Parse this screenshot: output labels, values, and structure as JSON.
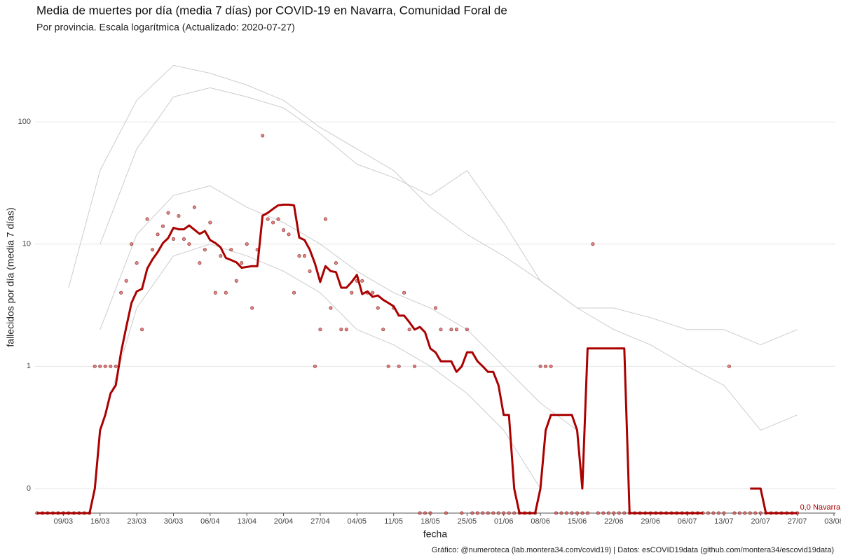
{
  "chart_data": {
    "type": "line",
    "title": "Media de muertes por día (media 7 días) por COVID-19 en Navarra, Comunidad Foral de",
    "subtitle": "Por provincia. Escala logarítmica  (Actualizado: 2020-07-27)",
    "x_label": "fecha",
    "y_label": "fallecidos por día (media 7 días)",
    "caption": "Gráfico: @numeroteca (lab.montera34.com/covid19) | Datos: esCOVID19data (github.com/montera34/escovid19data)",
    "log_scale": true,
    "grid": true,
    "xlim": [
      "04/03",
      "03/08"
    ],
    "xticks": [
      "09/03",
      "16/03",
      "23/03",
      "30/03",
      "06/04",
      "13/04",
      "20/04",
      "27/04",
      "04/05",
      "11/05",
      "18/05",
      "25/05",
      "01/06",
      "08/06",
      "15/06",
      "22/06",
      "29/06",
      "06/07",
      "13/07",
      "20/07",
      "27/07",
      "03/08"
    ],
    "ylim": [
      0.063,
      450
    ],
    "yticks": [
      {
        "value": 0.1,
        "label": "0"
      },
      1,
      10,
      100
    ],
    "x": [
      "04/03",
      "05/03",
      "06/03",
      "07/03",
      "08/03",
      "09/03",
      "10/03",
      "11/03",
      "12/03",
      "13/03",
      "14/03",
      "15/03",
      "16/03",
      "17/03",
      "18/03",
      "19/03",
      "20/03",
      "21/03",
      "22/03",
      "23/03",
      "24/03",
      "25/03",
      "26/03",
      "27/03",
      "28/03",
      "29/03",
      "30/03",
      "31/03",
      "01/04",
      "02/04",
      "03/04",
      "04/04",
      "05/04",
      "06/04",
      "07/04",
      "08/04",
      "09/04",
      "10/04",
      "11/04",
      "12/04",
      "13/04",
      "14/04",
      "15/04",
      "16/04",
      "17/04",
      "18/04",
      "19/04",
      "20/04",
      "21/04",
      "22/04",
      "23/04",
      "24/04",
      "25/04",
      "26/04",
      "27/04",
      "28/04",
      "29/04",
      "30/04",
      "01/05",
      "02/05",
      "03/05",
      "04/05",
      "05/05",
      "06/05",
      "07/05",
      "08/05",
      "09/05",
      "10/05",
      "11/05",
      "12/05",
      "13/05",
      "14/05",
      "15/05",
      "16/05",
      "17/05",
      "18/05",
      "19/05",
      "20/05",
      "21/05",
      "22/05",
      "23/05",
      "24/05",
      "25/05",
      "26/05",
      "27/05",
      "28/05",
      "29/05",
      "30/05",
      "31/05",
      "01/06",
      "02/06",
      "03/06",
      "04/06",
      "05/06",
      "06/06",
      "07/06",
      "08/06",
      "09/06",
      "10/06",
      "11/06",
      "12/06",
      "13/06",
      "14/06",
      "15/06",
      "16/06",
      "17/06",
      "18/06",
      "19/06",
      "20/06",
      "21/06",
      "22/06",
      "23/06",
      "24/06",
      "25/06",
      "26/06",
      "27/06",
      "28/06",
      "29/06",
      "30/06",
      "01/07",
      "02/07",
      "03/07",
      "04/07",
      "05/07",
      "06/07",
      "07/07",
      "08/07",
      "09/07",
      "10/07",
      "11/07",
      "12/07",
      "13/07",
      "14/07",
      "15/07",
      "16/07",
      "17/07",
      "18/07",
      "19/07",
      "20/07",
      "21/07",
      "22/07",
      "23/07",
      "24/07",
      "25/07",
      "26/07",
      "27/07"
    ],
    "series": [
      {
        "color": "#cccccc",
        "x": [
          "10/03",
          "16/03",
          "23/03",
          "30/03",
          "06/04",
          "13/04",
          "20/04",
          "27/04",
          "04/05",
          "11/05",
          "18/05",
          "25/05",
          "01/06",
          "08/06",
          "15/06",
          "22/06",
          "29/06",
          "06/07",
          "13/07",
          "20/07",
          "27/07"
        ],
        "values": [
          4.4,
          40,
          150,
          290,
          250,
          200,
          150,
          90,
          60,
          40,
          20,
          12,
          8,
          5,
          3,
          3,
          2.5,
          2,
          2,
          1.5,
          2
        ]
      },
      {
        "color": "#cccccc",
        "x": [
          "16/03",
          "23/03",
          "30/03",
          "06/04",
          "13/04",
          "20/04",
          "27/04",
          "04/05",
          "11/05",
          "18/05",
          "25/05",
          "01/06",
          "08/06",
          "15/06",
          "22/06",
          "29/06",
          "06/07",
          "13/07",
          "20/07",
          "27/07"
        ],
        "values": [
          10,
          60,
          160,
          190,
          160,
          130,
          80,
          45,
          35,
          25,
          40,
          15,
          5,
          3,
          2,
          1.5,
          1,
          0.7,
          0.3,
          0.4
        ]
      },
      {
        "color": "#cccccc",
        "x": [
          "16/03",
          "23/03",
          "30/03",
          "06/04",
          "13/04",
          "20/04",
          "27/04",
          "04/05",
          "11/05",
          "18/05",
          "25/05",
          "01/06",
          "08/06",
          "15/06"
        ],
        "values": [
          2,
          12,
          25,
          30,
          20,
          15,
          10,
          6,
          4,
          3,
          2,
          1,
          0.5,
          0.3
        ]
      },
      {
        "color": "#cccccc",
        "x": [
          "16/03",
          "23/03",
          "30/03",
          "06/04",
          "13/04",
          "20/04",
          "27/04",
          "04/05",
          "11/05",
          "18/05",
          "25/05",
          "01/06",
          "08/06"
        ],
        "values": [
          0.3,
          3,
          8,
          10,
          8,
          6,
          4,
          2,
          1.5,
          1,
          0.6,
          0.3,
          0.1
        ]
      },
      {
        "color": "#d9534f",
        "style": "points",
        "values": [
          0,
          0,
          0,
          0,
          0,
          0,
          0,
          0,
          0,
          0,
          0,
          1,
          1,
          1,
          1,
          1,
          4,
          5,
          10,
          7,
          2,
          16,
          9,
          12,
          14,
          18,
          11,
          17,
          11,
          10,
          20,
          7,
          9,
          15,
          4,
          8,
          4,
          9,
          5,
          7,
          10,
          3,
          9,
          77,
          16,
          15,
          16,
          13,
          12,
          4,
          8,
          8,
          6,
          1,
          2,
          16,
          3,
          7,
          2,
          2,
          4,
          5,
          5,
          4,
          4,
          3,
          2,
          1,
          3,
          1,
          4,
          2,
          1,
          0,
          0,
          0,
          3,
          2,
          0,
          2,
          2,
          0,
          2,
          0,
          0,
          0,
          0,
          0,
          0,
          0,
          0,
          0,
          0,
          0,
          0,
          0,
          1,
          1,
          1,
          0,
          0,
          0,
          0,
          0,
          0,
          0,
          10,
          0,
          0,
          0,
          0,
          0,
          0,
          0,
          0,
          0,
          0,
          0,
          0,
          0,
          0,
          0,
          0,
          0,
          0,
          0,
          0,
          0,
          0,
          0,
          0,
          0,
          1,
          0,
          0,
          0,
          0,
          0,
          0,
          0,
          0,
          0,
          0,
          0,
          0,
          0
        ]
      },
      {
        "color": "#aa0000",
        "end_label": "0,0 Navarra",
        "values": [
          0,
          0,
          0,
          0,
          0,
          0,
          0,
          0,
          0,
          0,
          0,
          0.1,
          0.3,
          0.4,
          0.6,
          0.7,
          1.3,
          2.1,
          3.3,
          4.1,
          4.3,
          6.3,
          7.5,
          8.6,
          10.2,
          11.2,
          13.6,
          13.2,
          13.2,
          14.2,
          13.1,
          12.1,
          12.8,
          10.8,
          10.2,
          9.4,
          7.7,
          7.4,
          7.1,
          6.4,
          6.5,
          6.6,
          6.6,
          17.1,
          18,
          19.4,
          20.8,
          21,
          21,
          20.8,
          11.3,
          10.8,
          9,
          6.9,
          4.9,
          6.6,
          6,
          5.9,
          4.4,
          4.4,
          4.9,
          5.6,
          3.9,
          4.1,
          3.7,
          3.8,
          3.5,
          3.3,
          3.1,
          2.6,
          2.6,
          2.3,
          2.0,
          2.1,
          1.9,
          1.4,
          1.3,
          1.1,
          1.1,
          1.1,
          0.9,
          1.0,
          1.3,
          1.3,
          1.1,
          1.0,
          0.9,
          0.9,
          0.7,
          0.4,
          0.4,
          0.1,
          0,
          0,
          0,
          0,
          0.1,
          0.3,
          0.4,
          0.4,
          0.4,
          0.4,
          0.4,
          0.3,
          0.1,
          1.4,
          1.4,
          1.4,
          1.4,
          1.4,
          1.4,
          1.4,
          1.4,
          0,
          0,
          0,
          0,
          0,
          0,
          0,
          0,
          0,
          0,
          0,
          0,
          0,
          0,
          0,
          null,
          null,
          null,
          null,
          null,
          null,
          null,
          null,
          0.1,
          0.1,
          0.1,
          0,
          0,
          0,
          0,
          0,
          0,
          0
        ]
      }
    ]
  }
}
